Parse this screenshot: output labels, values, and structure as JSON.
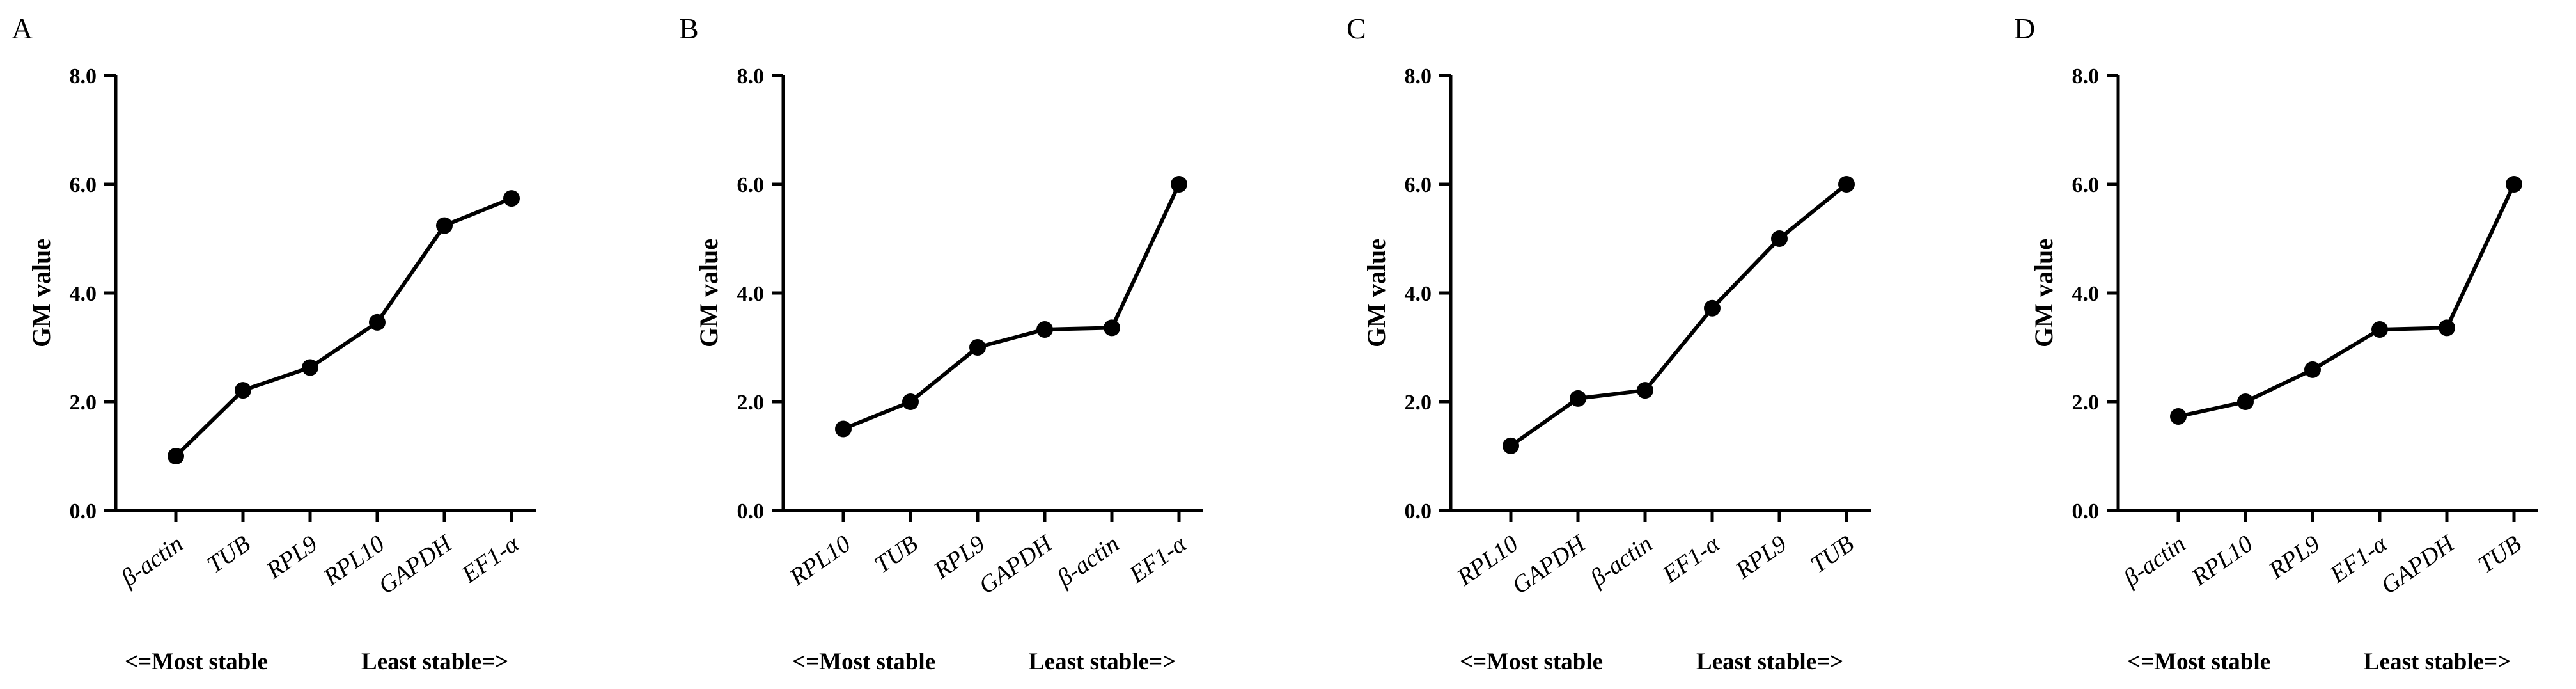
{
  "chart_data": [
    {
      "type": "line",
      "panel_label": "A",
      "ylabel": "GM value",
      "ylim": [
        0,
        8
      ],
      "yticks": [
        "0.0",
        "2.0",
        "4.0",
        "6.0",
        "8.0"
      ],
      "categories": [
        "β-actin",
        "TUB",
        "RPL9",
        "RPL10",
        "GAPDH",
        "EF1-α"
      ],
      "values": [
        1.0,
        2.21,
        2.63,
        3.46,
        5.24,
        5.74
      ],
      "xlabel_left": "<=Most stable",
      "xlabel_right": "Least stable=>"
    },
    {
      "type": "line",
      "panel_label": "B",
      "ylabel": "GM value",
      "ylim": [
        0,
        8
      ],
      "yticks": [
        "0.0",
        "2.0",
        "4.0",
        "6.0",
        "8.0"
      ],
      "categories": [
        "RPL10",
        "TUB",
        "RPL9",
        "GAPDH",
        "β-actin",
        "EF1-α"
      ],
      "values": [
        1.5,
        2.0,
        3.0,
        3.33,
        3.36,
        6.0
      ],
      "xlabel_left": "<=Most stable",
      "xlabel_right": "Least stable=>"
    },
    {
      "type": "line",
      "panel_label": "C",
      "ylabel": "GM value",
      "ylim": [
        0,
        8
      ],
      "yticks": [
        "0.0",
        "2.0",
        "4.0",
        "6.0",
        "8.0"
      ],
      "categories": [
        "RPL10",
        "GAPDH",
        "β-actin",
        "EF1-α",
        "RPL9",
        "TUB"
      ],
      "values": [
        1.19,
        2.06,
        2.21,
        3.72,
        5.0,
        6.0
      ],
      "xlabel_left": "<=Most stable",
      "xlabel_right": "Least stable=>"
    },
    {
      "type": "line",
      "panel_label": "D",
      "ylabel": "GM value",
      "ylim": [
        0,
        8
      ],
      "yticks": [
        "0.0",
        "2.0",
        "4.0",
        "6.0",
        "8.0"
      ],
      "categories": [
        "β-actin",
        "RPL10",
        "RPL9",
        "EF1-α",
        "GAPDH",
        "TUB"
      ],
      "values": [
        1.73,
        2.0,
        2.59,
        3.33,
        3.36,
        6.0
      ],
      "xlabel_left": "<=Most stable",
      "xlabel_right": "Least stable=>"
    }
  ]
}
